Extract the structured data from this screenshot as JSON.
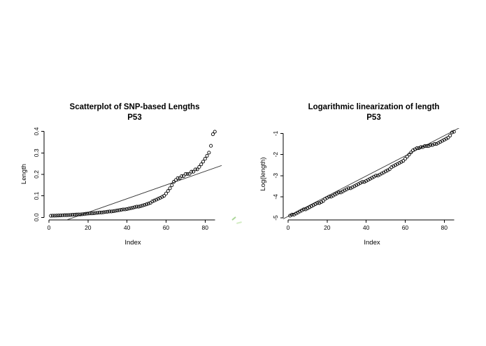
{
  "page": {
    "background": "#ffffff"
  },
  "chart_data": [
    {
      "type": "scatter",
      "title": "Scatterplot of SNP-based Lengths",
      "subtitle": "P53",
      "xlabel": "Index",
      "ylabel": "Length",
      "xlim": [
        -2.5,
        88.5
      ],
      "ylim": [
        -0.012,
        0.415
      ],
      "xticks": [
        0,
        20,
        40,
        60,
        80
      ],
      "xtick_labels": [
        "0",
        "20",
        "40",
        "60",
        "80"
      ],
      "yticks": [
        0,
        0.1,
        0.2,
        0.3,
        0.4
      ],
      "ytick_labels": [
        "0.0",
        "0.1",
        "0.2",
        "0.3",
        "0.4"
      ],
      "grid": false,
      "legend": null,
      "point_style": {
        "shape": "open-circle",
        "color": "#000000"
      },
      "fit_line": {
        "slope": 0.00319,
        "intercept": -0.041,
        "color": "#333333"
      },
      "x": [
        1,
        2,
        3,
        4,
        5,
        6,
        7,
        8,
        9,
        10,
        11,
        12,
        13,
        14,
        15,
        16,
        17,
        18,
        19,
        20,
        21,
        22,
        23,
        24,
        25,
        26,
        27,
        28,
        29,
        30,
        31,
        32,
        33,
        34,
        35,
        36,
        37,
        38,
        39,
        40,
        41,
        42,
        43,
        44,
        45,
        46,
        47,
        48,
        49,
        50,
        51,
        52,
        53,
        54,
        55,
        56,
        57,
        58,
        59,
        60,
        61,
        62,
        63,
        64,
        65,
        66,
        67,
        68,
        69,
        70,
        71,
        72,
        73,
        74,
        75,
        76,
        77,
        78,
        79,
        80,
        81,
        82,
        83,
        84,
        85
      ],
      "y": [
        0.0074,
        0.0078,
        0.0078,
        0.0082,
        0.0087,
        0.0091,
        0.0096,
        0.0101,
        0.0101,
        0.0106,
        0.0111,
        0.0117,
        0.0123,
        0.0129,
        0.0136,
        0.0136,
        0.0143,
        0.015,
        0.0166,
        0.0174,
        0.0183,
        0.0183,
        0.0193,
        0.0202,
        0.0213,
        0.0224,
        0.0224,
        0.0235,
        0.0247,
        0.026,
        0.0273,
        0.0273,
        0.0287,
        0.0302,
        0.0317,
        0.0334,
        0.0351,
        0.0369,
        0.0369,
        0.0388,
        0.0408,
        0.0429,
        0.045,
        0.0474,
        0.0498,
        0.0498,
        0.0523,
        0.055,
        0.0578,
        0.0608,
        0.0639,
        0.0672,
        0.0743,
        0.0781,
        0.0821,
        0.0863,
        0.0907,
        0.0954,
        0.1003,
        0.1108,
        0.1225,
        0.1353,
        0.1496,
        0.1653,
        0.1738,
        0.1827,
        0.1827,
        0.192,
        0.192,
        0.2019,
        0.2019,
        0.2019,
        0.2122,
        0.2122,
        0.2231,
        0.2231,
        0.2346,
        0.2466,
        0.2592,
        0.2725,
        0.2865,
        0.3012,
        0.3329,
        0.3867,
        0.3985
      ]
    },
    {
      "type": "scatter",
      "title": "Logarithmic linearization of length",
      "subtitle": "P53",
      "xlabel": "Index",
      "ylabel": "Log(length)",
      "xlim": [
        -2.5,
        88.5
      ],
      "ylim": [
        -5.1,
        -0.75
      ],
      "xticks": [
        0,
        20,
        40,
        60,
        80
      ],
      "xtick_labels": [
        "0",
        "20",
        "40",
        "60",
        "80"
      ],
      "yticks": [
        -5,
        -4,
        -3,
        -2,
        -1
      ],
      "ytick_labels": [
        "-5",
        "-4",
        "-3",
        "-2",
        "-1"
      ],
      "grid": false,
      "legend": null,
      "point_style": {
        "shape": "open-circle",
        "color": "#000000"
      },
      "fit_line": {
        "slope": 0.0478,
        "intercept": -4.93,
        "color": "#333333"
      },
      "x": [
        1,
        2,
        3,
        4,
        5,
        6,
        7,
        8,
        9,
        10,
        11,
        12,
        13,
        14,
        15,
        16,
        17,
        18,
        19,
        20,
        21,
        22,
        23,
        24,
        25,
        26,
        27,
        28,
        29,
        30,
        31,
        32,
        33,
        34,
        35,
        36,
        37,
        38,
        39,
        40,
        41,
        42,
        43,
        44,
        45,
        46,
        47,
        48,
        49,
        50,
        51,
        52,
        53,
        54,
        55,
        56,
        57,
        58,
        59,
        60,
        61,
        62,
        63,
        64,
        65,
        66,
        67,
        68,
        69,
        70,
        71,
        72,
        73,
        74,
        75,
        76,
        77,
        78,
        79,
        80,
        81,
        82,
        83,
        84,
        85
      ],
      "y": [
        -4.9,
        -4.85,
        -4.85,
        -4.8,
        -4.75,
        -4.7,
        -4.65,
        -4.6,
        -4.6,
        -4.55,
        -4.5,
        -4.45,
        -4.4,
        -4.35,
        -4.3,
        -4.3,
        -4.25,
        -4.2,
        -4.1,
        -4.05,
        -4.0,
        -4.0,
        -3.95,
        -3.9,
        -3.85,
        -3.8,
        -3.8,
        -3.75,
        -3.7,
        -3.65,
        -3.6,
        -3.6,
        -3.55,
        -3.5,
        -3.45,
        -3.4,
        -3.35,
        -3.3,
        -3.3,
        -3.25,
        -3.2,
        -3.15,
        -3.1,
        -3.05,
        -3.0,
        -3.0,
        -2.95,
        -2.9,
        -2.85,
        -2.8,
        -2.75,
        -2.7,
        -2.6,
        -2.55,
        -2.5,
        -2.45,
        -2.4,
        -2.35,
        -2.3,
        -2.2,
        -2.1,
        -2.0,
        -1.9,
        -1.8,
        -1.75,
        -1.7,
        -1.7,
        -1.65,
        -1.65,
        -1.6,
        -1.6,
        -1.6,
        -1.55,
        -1.55,
        -1.5,
        -1.5,
        -1.45,
        -1.4,
        -1.35,
        -1.3,
        -1.25,
        -1.2,
        -1.1,
        -0.95,
        -0.92
      ]
    }
  ],
  "stray_marks": {
    "color": "#9ccf86"
  }
}
